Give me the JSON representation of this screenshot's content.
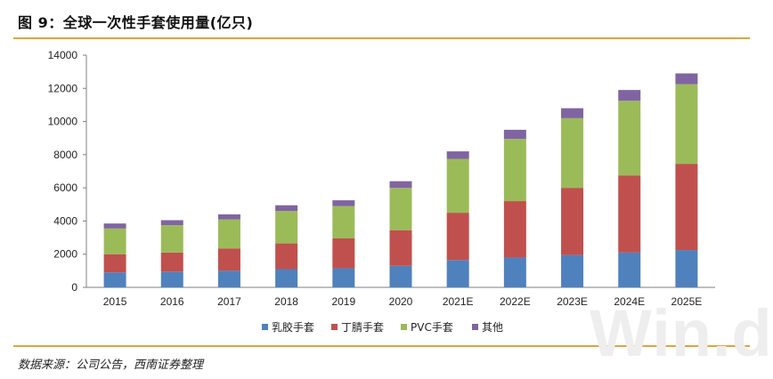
{
  "title": "图 9：全球一次性手套使用量(亿只)",
  "source": "数据来源：公司公告，西南证券整理",
  "watermark": "Win.d",
  "chart_data": {
    "type": "bar",
    "stacked": true,
    "categories": [
      "2015",
      "2016",
      "2017",
      "2018",
      "2019",
      "2020",
      "2021E",
      "2022E",
      "2023E",
      "2024E",
      "2025E"
    ],
    "series": [
      {
        "name": "乳胶手套",
        "color": "#4f81bd",
        "values": [
          900,
          950,
          1000,
          1100,
          1150,
          1300,
          1650,
          1800,
          1950,
          2100,
          2250
        ]
      },
      {
        "name": "丁腈手套",
        "color": "#c0504d",
        "values": [
          1100,
          1150,
          1350,
          1550,
          1800,
          2150,
          2850,
          3400,
          4050,
          4650,
          5200
        ]
      },
      {
        "name": "PVC手套",
        "color": "#9bbb59",
        "values": [
          1550,
          1650,
          1750,
          1950,
          1950,
          2550,
          3250,
          3750,
          4200,
          4500,
          4800
        ]
      },
      {
        "name": "其他",
        "color": "#8064a2",
        "values": [
          300,
          300,
          300,
          350,
          350,
          400,
          450,
          550,
          600,
          650,
          650
        ]
      }
    ],
    "ylim": [
      0,
      14000
    ],
    "yticks": [
      0,
      2000,
      4000,
      6000,
      8000,
      10000,
      12000,
      14000
    ],
    "xlabel": "",
    "ylabel": "",
    "grid": false,
    "legend": "bottom"
  }
}
